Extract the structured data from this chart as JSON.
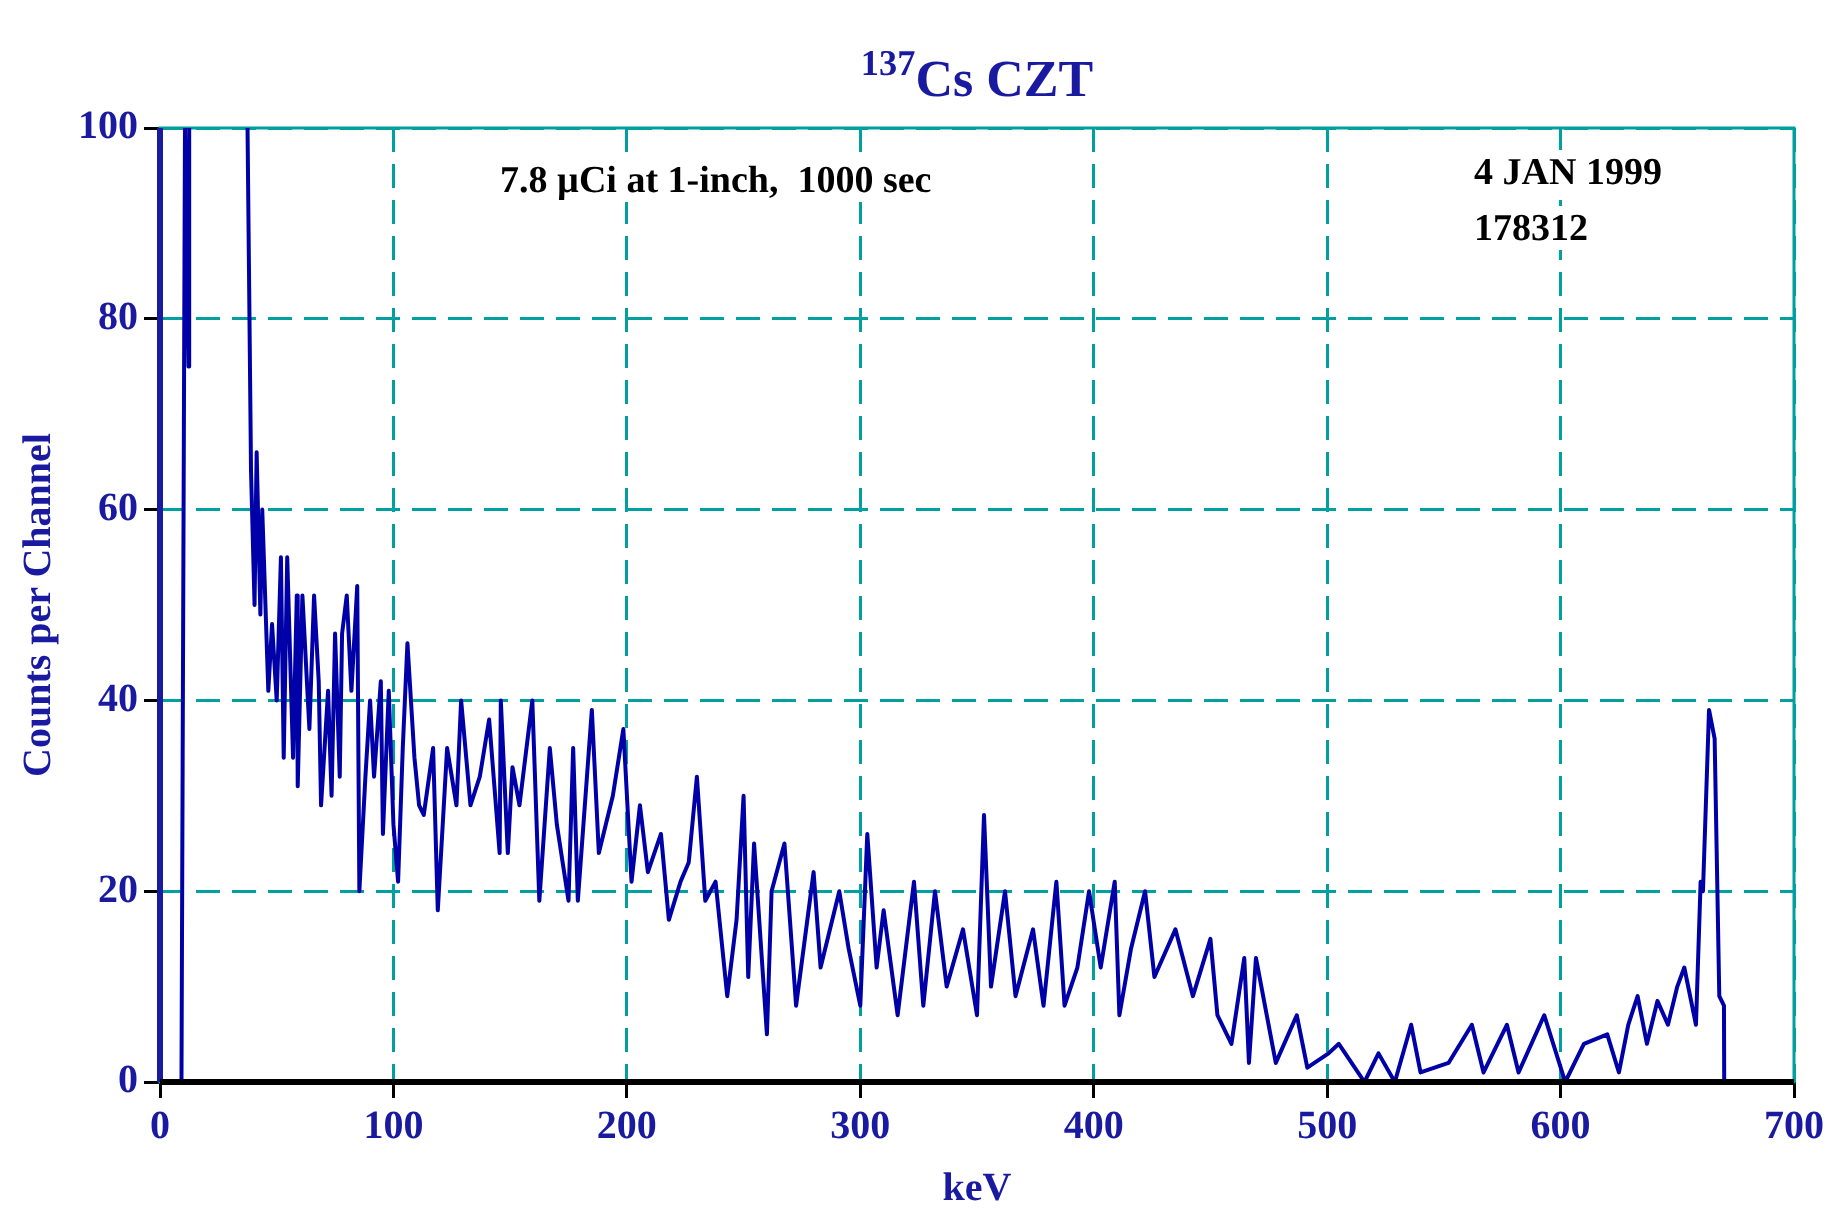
{
  "chart_data": {
    "type": "line",
    "title": "$^{137}$Cs CZT",
    "xlabel": "keV",
    "ylabel": "Counts per Channel",
    "annotations": [
      "7.8 µCi at 1-inch,  1000 sec",
      "4 JAN 1999",
      "178312"
    ],
    "xlim": [
      0,
      700
    ],
    "xticks": [
      0,
      100,
      200,
      300,
      400,
      500,
      600,
      700
    ],
    "ylim": [
      0,
      100
    ],
    "yticks": [
      0,
      20,
      40,
      60,
      80,
      100
    ],
    "grid": true,
    "legend": false,
    "marker": "none",
    "line_style": "solid",
    "series": [
      {
        "color": "#0000a8",
        "x": [
          0,
          9.2,
          10.7,
          12.2,
          12.5,
          25,
          37.5,
          39,
          40.5,
          41.4,
          43,
          43.8,
          46.4,
          48,
          50,
          51.8,
          53,
          54.5,
          57,
          58.6,
          59,
          61,
          64,
          66,
          68,
          69,
          72,
          73.5,
          75,
          77,
          78,
          80,
          82,
          84.5,
          85.4,
          88,
          90,
          91.7,
          94.6,
          95.5,
          98,
          100,
          102,
          104,
          106,
          109,
          111,
          113,
          117,
          119,
          123,
          127,
          129,
          133,
          137,
          141,
          145.5,
          146,
          149,
          151,
          154,
          159.5,
          162.5,
          167,
          170,
          175,
          177,
          179,
          185,
          188,
          194,
          198.5,
          202,
          205.6,
          209,
          214.6,
          218,
          223,
          226.5,
          230,
          233.6,
          238,
          243,
          247,
          250,
          252,
          254.5,
          260,
          262,
          267.5,
          272.5,
          280,
          283,
          291,
          295,
          300,
          303,
          307,
          310,
          316,
          323,
          327,
          332,
          337,
          344,
          350,
          353,
          356,
          362,
          366.5,
          374,
          378.5,
          384,
          387.5,
          393,
          398,
          403,
          409,
          411,
          416,
          422,
          426,
          435,
          442.5,
          450,
          453,
          459,
          464.5,
          466.5,
          469.5,
          478,
          487,
          491.5,
          500.6,
          505,
          516,
          522,
          529,
          536,
          540,
          552,
          562,
          567,
          577,
          582,
          593,
          602,
          610,
          620,
          625,
          629,
          633,
          637,
          641.5,
          646,
          650,
          653,
          658,
          660,
          661,
          663.6,
          666,
          668,
          670,
          670.1,
          700
        ],
        "values": [
          0,
          0,
          100,
          75,
          100,
          null,
          100,
          64,
          50,
          66,
          49,
          60,
          41,
          48,
          40,
          55,
          34,
          55,
          34,
          51,
          31,
          51,
          37,
          51,
          42,
          29,
          41,
          30,
          47,
          32,
          47,
          51,
          41,
          52,
          20,
          32,
          40,
          32,
          42,
          26,
          41,
          27,
          21,
          35,
          46,
          34,
          29,
          28,
          35,
          18,
          35,
          29,
          40,
          29,
          32,
          38,
          24,
          40,
          24,
          33,
          29,
          40,
          19,
          35,
          27,
          19,
          35,
          19,
          39,
          24,
          30,
          37,
          21,
          29,
          22,
          26,
          17,
          21,
          23,
          32,
          19,
          21,
          9,
          17,
          30,
          11,
          25,
          5,
          20,
          25,
          8,
          22,
          12,
          20,
          14,
          8,
          26,
          12,
          18,
          7,
          21,
          8,
          20,
          10,
          16,
          7,
          28,
          10,
          20,
          9,
          16,
          8,
          21,
          8,
          12,
          20,
          12,
          21,
          7,
          14,
          20,
          11,
          16,
          9,
          15,
          7,
          4,
          13,
          2,
          13,
          2,
          7,
          1.5,
          3,
          4,
          0,
          3,
          0,
          6,
          1,
          2,
          6,
          1,
          6,
          1,
          7,
          0,
          4,
          5,
          1,
          6,
          9,
          4,
          8.5,
          6,
          10,
          12,
          6,
          21,
          20,
          39,
          36,
          9,
          8,
          0,
          0
        ]
      }
    ]
  }
}
